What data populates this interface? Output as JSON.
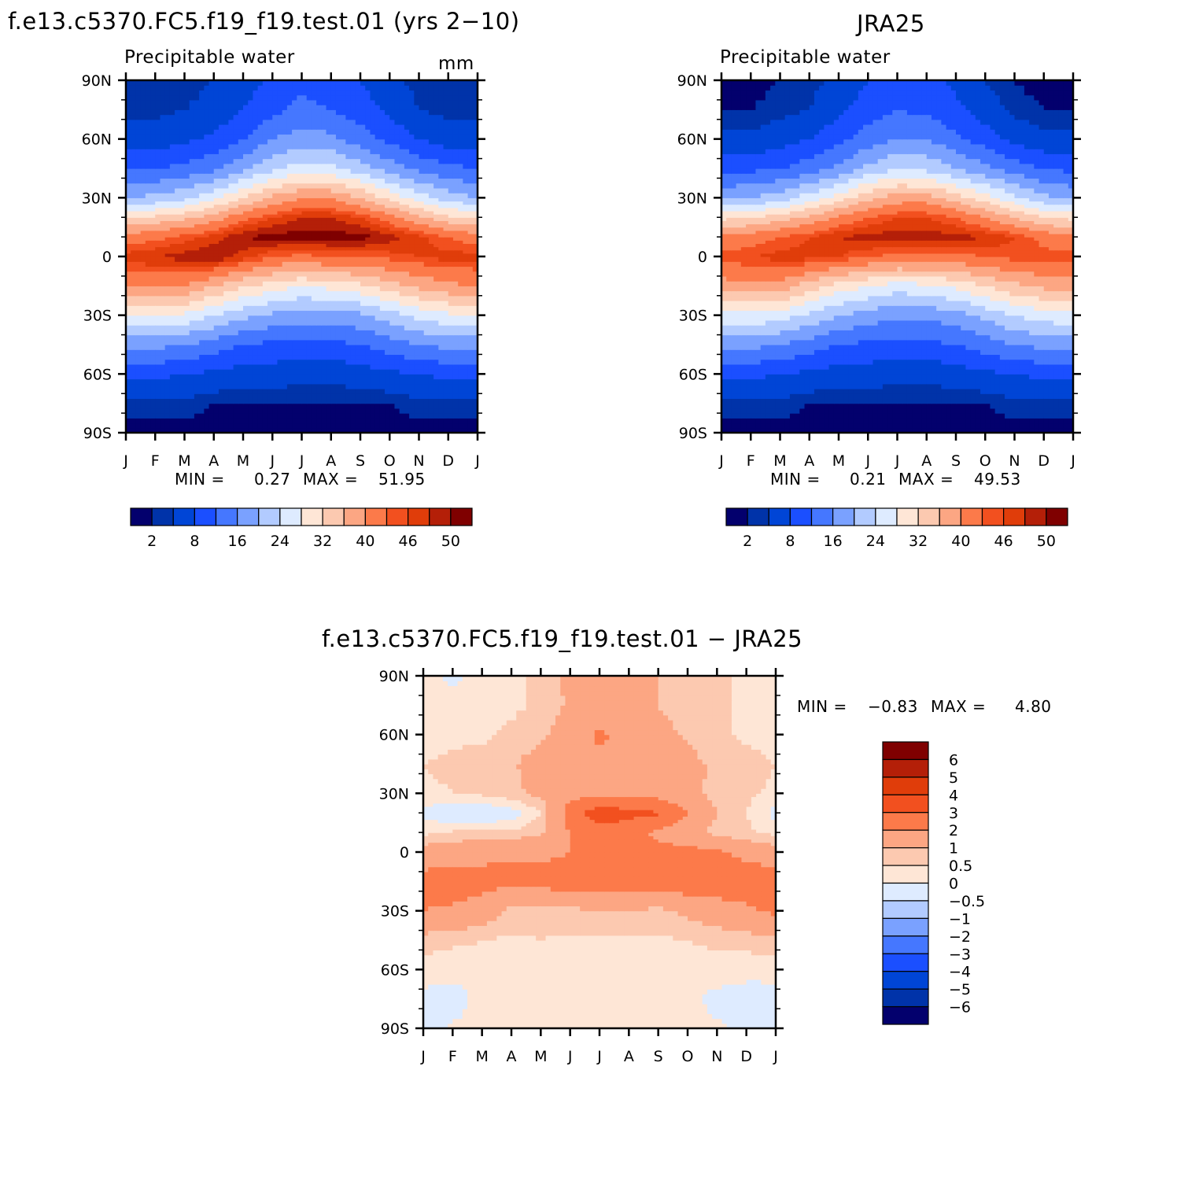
{
  "left_panel": {
    "main_title": "f.e13.c5370.FC5.f19_f19.test.01 (yrs 2−10)",
    "subtitle": "Precipitable water",
    "units": "mm",
    "min_label": "MIN =",
    "min_value": "0.27",
    "max_label": "MAX =",
    "max_value": "51.95"
  },
  "right_panel": {
    "main_title": "JRA25",
    "subtitle": "Precipitable water",
    "min_label": "MIN =",
    "min_value": "0.21",
    "max_label": "MAX =",
    "max_value": "49.53"
  },
  "diff_panel": {
    "main_title": "f.e13.c5370.FC5.f19_f19.test.01 − JRA25",
    "min_label": "MIN =",
    "min_value": "−0.83",
    "max_label": "MAX =",
    "max_value": "4.80"
  },
  "colors": {
    "abs_scale": [
      "#03006d",
      "#0033a9",
      "#0045d6",
      "#1b4fff",
      "#4577ff",
      "#7aa1ff",
      "#b2cbff",
      "#deebff",
      "#fee6d6",
      "#fcc9b0",
      "#fca683",
      "#fc7a4a",
      "#f2501f",
      "#e03d0a",
      "#b41f08",
      "#7f0000"
    ],
    "diff_scale": [
      "#03006d",
      "#0033a9",
      "#0045d6",
      "#1b4fff",
      "#4577ff",
      "#7aa1ff",
      "#b2cbff",
      "#deebff",
      "#fee6d6",
      "#fcc9b0",
      "#fca683",
      "#fc7a4a",
      "#f2501f",
      "#e03d0a",
      "#b41f08",
      "#7f0000"
    ]
  },
  "chart_data": [
    {
      "type": "heatmap",
      "title": "Precipitable water",
      "x_ticks": [
        "J",
        "F",
        "M",
        "A",
        "M",
        "J",
        "J",
        "A",
        "S",
        "O",
        "N",
        "D",
        "J"
      ],
      "y_ticks": [
        "90N",
        "60N",
        "30N",
        "0",
        "30S",
        "60S",
        "90S"
      ],
      "colorbar_labels": [
        "2",
        "8",
        "16",
        "24",
        "32",
        "40",
        "46",
        "50"
      ],
      "levels": [
        2,
        4,
        8,
        12,
        16,
        20,
        24,
        28,
        32,
        36,
        40,
        44,
        46,
        48,
        50
      ],
      "lat": [
        -90,
        -75,
        -60,
        -45,
        -30,
        -15,
        0,
        10,
        20,
        30,
        45,
        60,
        75,
        90
      ],
      "z": [
        [
          1,
          1,
          1,
          1,
          1,
          1,
          1,
          1,
          1,
          1,
          1,
          1,
          1
        ],
        [
          3,
          3,
          3,
          2,
          2,
          2,
          2,
          2,
          2,
          2,
          3,
          3,
          3
        ],
        [
          9,
          9,
          8,
          7,
          6,
          6,
          5,
          5,
          6,
          7,
          8,
          9,
          9
        ],
        [
          17,
          17,
          16,
          14,
          12,
          11,
          11,
          11,
          12,
          14,
          16,
          17,
          17
        ],
        [
          28,
          28,
          27,
          24,
          21,
          19,
          18,
          18,
          19,
          22,
          25,
          27,
          28
        ],
        [
          40,
          41,
          40,
          36,
          32,
          30,
          28,
          29,
          31,
          34,
          37,
          39,
          40
        ],
        [
          47,
          48,
          49,
          50,
          47,
          44,
          43,
          44,
          44,
          45,
          46,
          47,
          47
        ],
        [
          42,
          43,
          45,
          47,
          50,
          51,
          51,
          51,
          51,
          49,
          47,
          44,
          42
        ],
        [
          32,
          33,
          35,
          38,
          43,
          46,
          48,
          48,
          46,
          42,
          37,
          33,
          32
        ],
        [
          20,
          21,
          23,
          27,
          32,
          37,
          40,
          40,
          36,
          31,
          26,
          22,
          20
        ],
        [
          12,
          12,
          13,
          15,
          19,
          23,
          26,
          25,
          22,
          18,
          15,
          13,
          12
        ],
        [
          6,
          6,
          7,
          9,
          12,
          16,
          18,
          17,
          14,
          11,
          8,
          6,
          6
        ],
        [
          3,
          3,
          4,
          5,
          8,
          11,
          13,
          12,
          10,
          7,
          4,
          3,
          3
        ],
        [
          2,
          2,
          3,
          4,
          6,
          9,
          11,
          10,
          8,
          5,
          3,
          2,
          2
        ]
      ]
    },
    {
      "type": "heatmap",
      "title": "Precipitable water",
      "x_ticks": [
        "J",
        "F",
        "M",
        "A",
        "M",
        "J",
        "J",
        "A",
        "S",
        "O",
        "N",
        "D",
        "J"
      ],
      "y_ticks": [
        "90N",
        "60N",
        "30N",
        "0",
        "30S",
        "60S",
        "90S"
      ],
      "colorbar_labels": [
        "2",
        "8",
        "16",
        "24",
        "32",
        "40",
        "46",
        "50"
      ],
      "levels": [
        2,
        4,
        8,
        12,
        16,
        20,
        24,
        28,
        32,
        36,
        40,
        44,
        46,
        48,
        50
      ],
      "lat": [
        -90,
        -75,
        -60,
        -45,
        -30,
        -15,
        0,
        10,
        20,
        30,
        45,
        60,
        75,
        90
      ],
      "z": [
        [
          1,
          1,
          1,
          1,
          1,
          1,
          1,
          1,
          1,
          1,
          1,
          1,
          1
        ],
        [
          3,
          3,
          3,
          2,
          2,
          2,
          2,
          2,
          2,
          2,
          3,
          3,
          3
        ],
        [
          9,
          9,
          8,
          7,
          6,
          6,
          5,
          5,
          6,
          7,
          8,
          9,
          9
        ],
        [
          17,
          17,
          16,
          14,
          12,
          11,
          11,
          11,
          12,
          14,
          16,
          17,
          17
        ],
        [
          27,
          27,
          26,
          23,
          20,
          18,
          17,
          17,
          18,
          21,
          24,
          26,
          27
        ],
        [
          38,
          39,
          38,
          34,
          30,
          28,
          26,
          27,
          29,
          32,
          35,
          37,
          38
        ],
        [
          45,
          46,
          47,
          47,
          46,
          44,
          43,
          43,
          43,
          44,
          45,
          45,
          45
        ],
        [
          41,
          42,
          44,
          46,
          48,
          49,
          49,
          49,
          49,
          48,
          46,
          43,
          41
        ],
        [
          31,
          32,
          34,
          37,
          41,
          44,
          46,
          46,
          44,
          40,
          36,
          32,
          31
        ],
        [
          19,
          20,
          22,
          26,
          30,
          35,
          38,
          38,
          34,
          30,
          25,
          21,
          19
        ],
        [
          11,
          11,
          12,
          14,
          17,
          21,
          24,
          23,
          20,
          17,
          14,
          12,
          11
        ],
        [
          5,
          5,
          6,
          8,
          11,
          14,
          16,
          16,
          13,
          10,
          7,
          5,
          5
        ],
        [
          2,
          2,
          3,
          4,
          7,
          10,
          12,
          11,
          9,
          6,
          3,
          2,
          2
        ],
        [
          1,
          1,
          2,
          3,
          5,
          8,
          10,
          9,
          7,
          4,
          2,
          1,
          1
        ]
      ]
    },
    {
      "type": "heatmap",
      "title": "f.e13.c5370.FC5.f19_f19.test.01 − JRA25",
      "x_ticks": [
        "J",
        "F",
        "M",
        "A",
        "M",
        "J",
        "J",
        "A",
        "S",
        "O",
        "N",
        "D",
        "J"
      ],
      "y_ticks": [
        "90N",
        "60N",
        "30N",
        "0",
        "30S",
        "60S",
        "90S"
      ],
      "colorbar_labels": [
        "6",
        "5",
        "4",
        "3",
        "2",
        "1",
        "0.5",
        "0",
        "−0.5",
        "−1",
        "−2",
        "−3",
        "−4",
        "−5",
        "−6"
      ],
      "levels": [
        -6,
        -5,
        -4,
        -3,
        -2,
        -1,
        -0.5,
        0,
        0.5,
        1,
        2,
        3,
        4,
        5,
        6
      ],
      "lat": [
        -90,
        -75,
        -60,
        -45,
        -30,
        -15,
        0,
        10,
        20,
        30,
        45,
        60,
        75,
        90
      ],
      "z": [
        [
          -0.3,
          0.1,
          0.2,
          0.2,
          0.2,
          0.2,
          0.2,
          0.2,
          0.2,
          0.2,
          0.1,
          -0.2,
          -0.3
        ],
        [
          -0.2,
          -0.3,
          0.2,
          0.2,
          0.3,
          0.3,
          0.3,
          0.3,
          0.3,
          0.2,
          -0.2,
          -0.3,
          -0.4
        ],
        [
          0.3,
          0.2,
          0.3,
          0.3,
          0.3,
          0.3,
          0.3,
          0.3,
          0.3,
          0.3,
          0.3,
          0.2,
          0.3
        ],
        [
          0.7,
          0.6,
          0.5,
          0.4,
          0.5,
          0.4,
          0.4,
          0.4,
          0.4,
          0.5,
          0.6,
          0.7,
          0.7
        ],
        [
          2.0,
          1.8,
          1.5,
          0.8,
          0.6,
          0.8,
          1.0,
          1.0,
          0.8,
          1.2,
          1.5,
          1.8,
          2.2
        ],
        [
          2.4,
          2.6,
          2.4,
          2.2,
          2.4,
          2.5,
          2.6,
          2.6,
          2.6,
          2.6,
          2.6,
          2.6,
          2.8
        ],
        [
          1.4,
          1.5,
          1.7,
          1.9,
          1.8,
          2.0,
          2.2,
          2.1,
          2.3,
          2.4,
          2.2,
          1.7,
          1.3
        ],
        [
          0.4,
          0.6,
          0.6,
          0.6,
          0.9,
          2.0,
          2.6,
          2.4,
          1.8,
          1.2,
          0.8,
          0.6,
          0.4
        ],
        [
          -0.2,
          -0.5,
          -0.6,
          -0.3,
          0.5,
          2.5,
          3.6,
          3.3,
          3.1,
          2.0,
          1.0,
          0.5,
          -0.2
        ],
        [
          0.4,
          0.5,
          0.6,
          0.8,
          1.2,
          1.6,
          1.8,
          1.8,
          1.7,
          1.2,
          0.8,
          0.6,
          0.4
        ],
        [
          0.5,
          0.6,
          0.7,
          0.9,
          1.4,
          1.8,
          1.6,
          1.7,
          1.5,
          1.2,
          0.9,
          0.7,
          0.5
        ],
        [
          0.3,
          0.4,
          0.4,
          0.6,
          0.8,
          1.5,
          2.2,
          1.6,
          1.2,
          0.9,
          0.6,
          0.4,
          0.3
        ],
        [
          0.2,
          0.3,
          0.4,
          0.4,
          0.6,
          1.1,
          1.4,
          1.3,
          1.0,
          0.8,
          0.6,
          0.4,
          0.2
        ],
        [
          0.3,
          -0.2,
          0.4,
          0.4,
          0.6,
          1.2,
          1.3,
          1.2,
          1.0,
          0.8,
          0.6,
          0.4,
          0.3
        ]
      ]
    }
  ]
}
